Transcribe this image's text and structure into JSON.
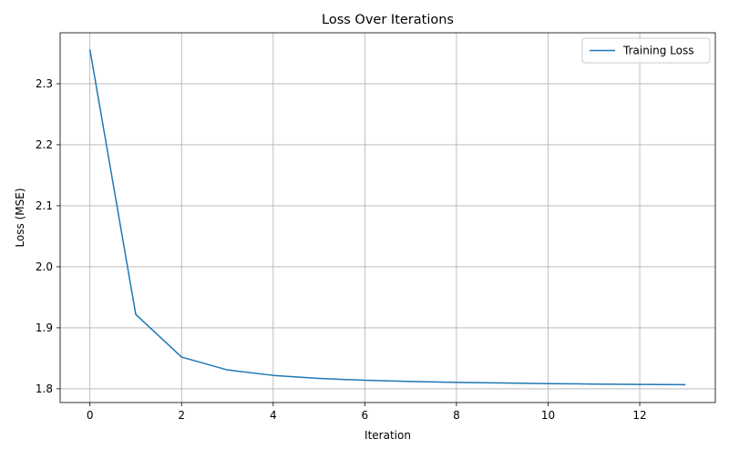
{
  "chart_data": {
    "type": "line",
    "title": "Loss Over Iterations",
    "xlabel": "Iteration",
    "ylabel": "Loss (MSE)",
    "x": [
      0,
      1,
      2,
      3,
      4,
      5,
      6,
      7,
      8,
      9,
      10,
      11,
      12,
      13
    ],
    "series": [
      {
        "name": "Training Loss",
        "color": "#1f77b4",
        "values": [
          2.356,
          1.922,
          1.852,
          1.831,
          1.822,
          1.817,
          1.814,
          1.812,
          1.8105,
          1.8095,
          1.8085,
          1.8078,
          1.8072,
          1.8068
        ]
      }
    ],
    "xlim": [
      -0.65,
      13.65
    ],
    "ylim": [
      1.7775,
      2.3835
    ],
    "xticks": [
      0,
      2,
      4,
      6,
      8,
      10,
      12
    ],
    "xtick_labels": [
      "0",
      "2",
      "4",
      "6",
      "8",
      "10",
      "12"
    ],
    "yticks": [
      1.8,
      1.9,
      2.0,
      2.1,
      2.2,
      2.3
    ],
    "ytick_labels": [
      "1.8",
      "1.9",
      "2.0",
      "2.1",
      "2.2",
      "2.3"
    ],
    "grid": true,
    "legend_position": "top-right"
  }
}
